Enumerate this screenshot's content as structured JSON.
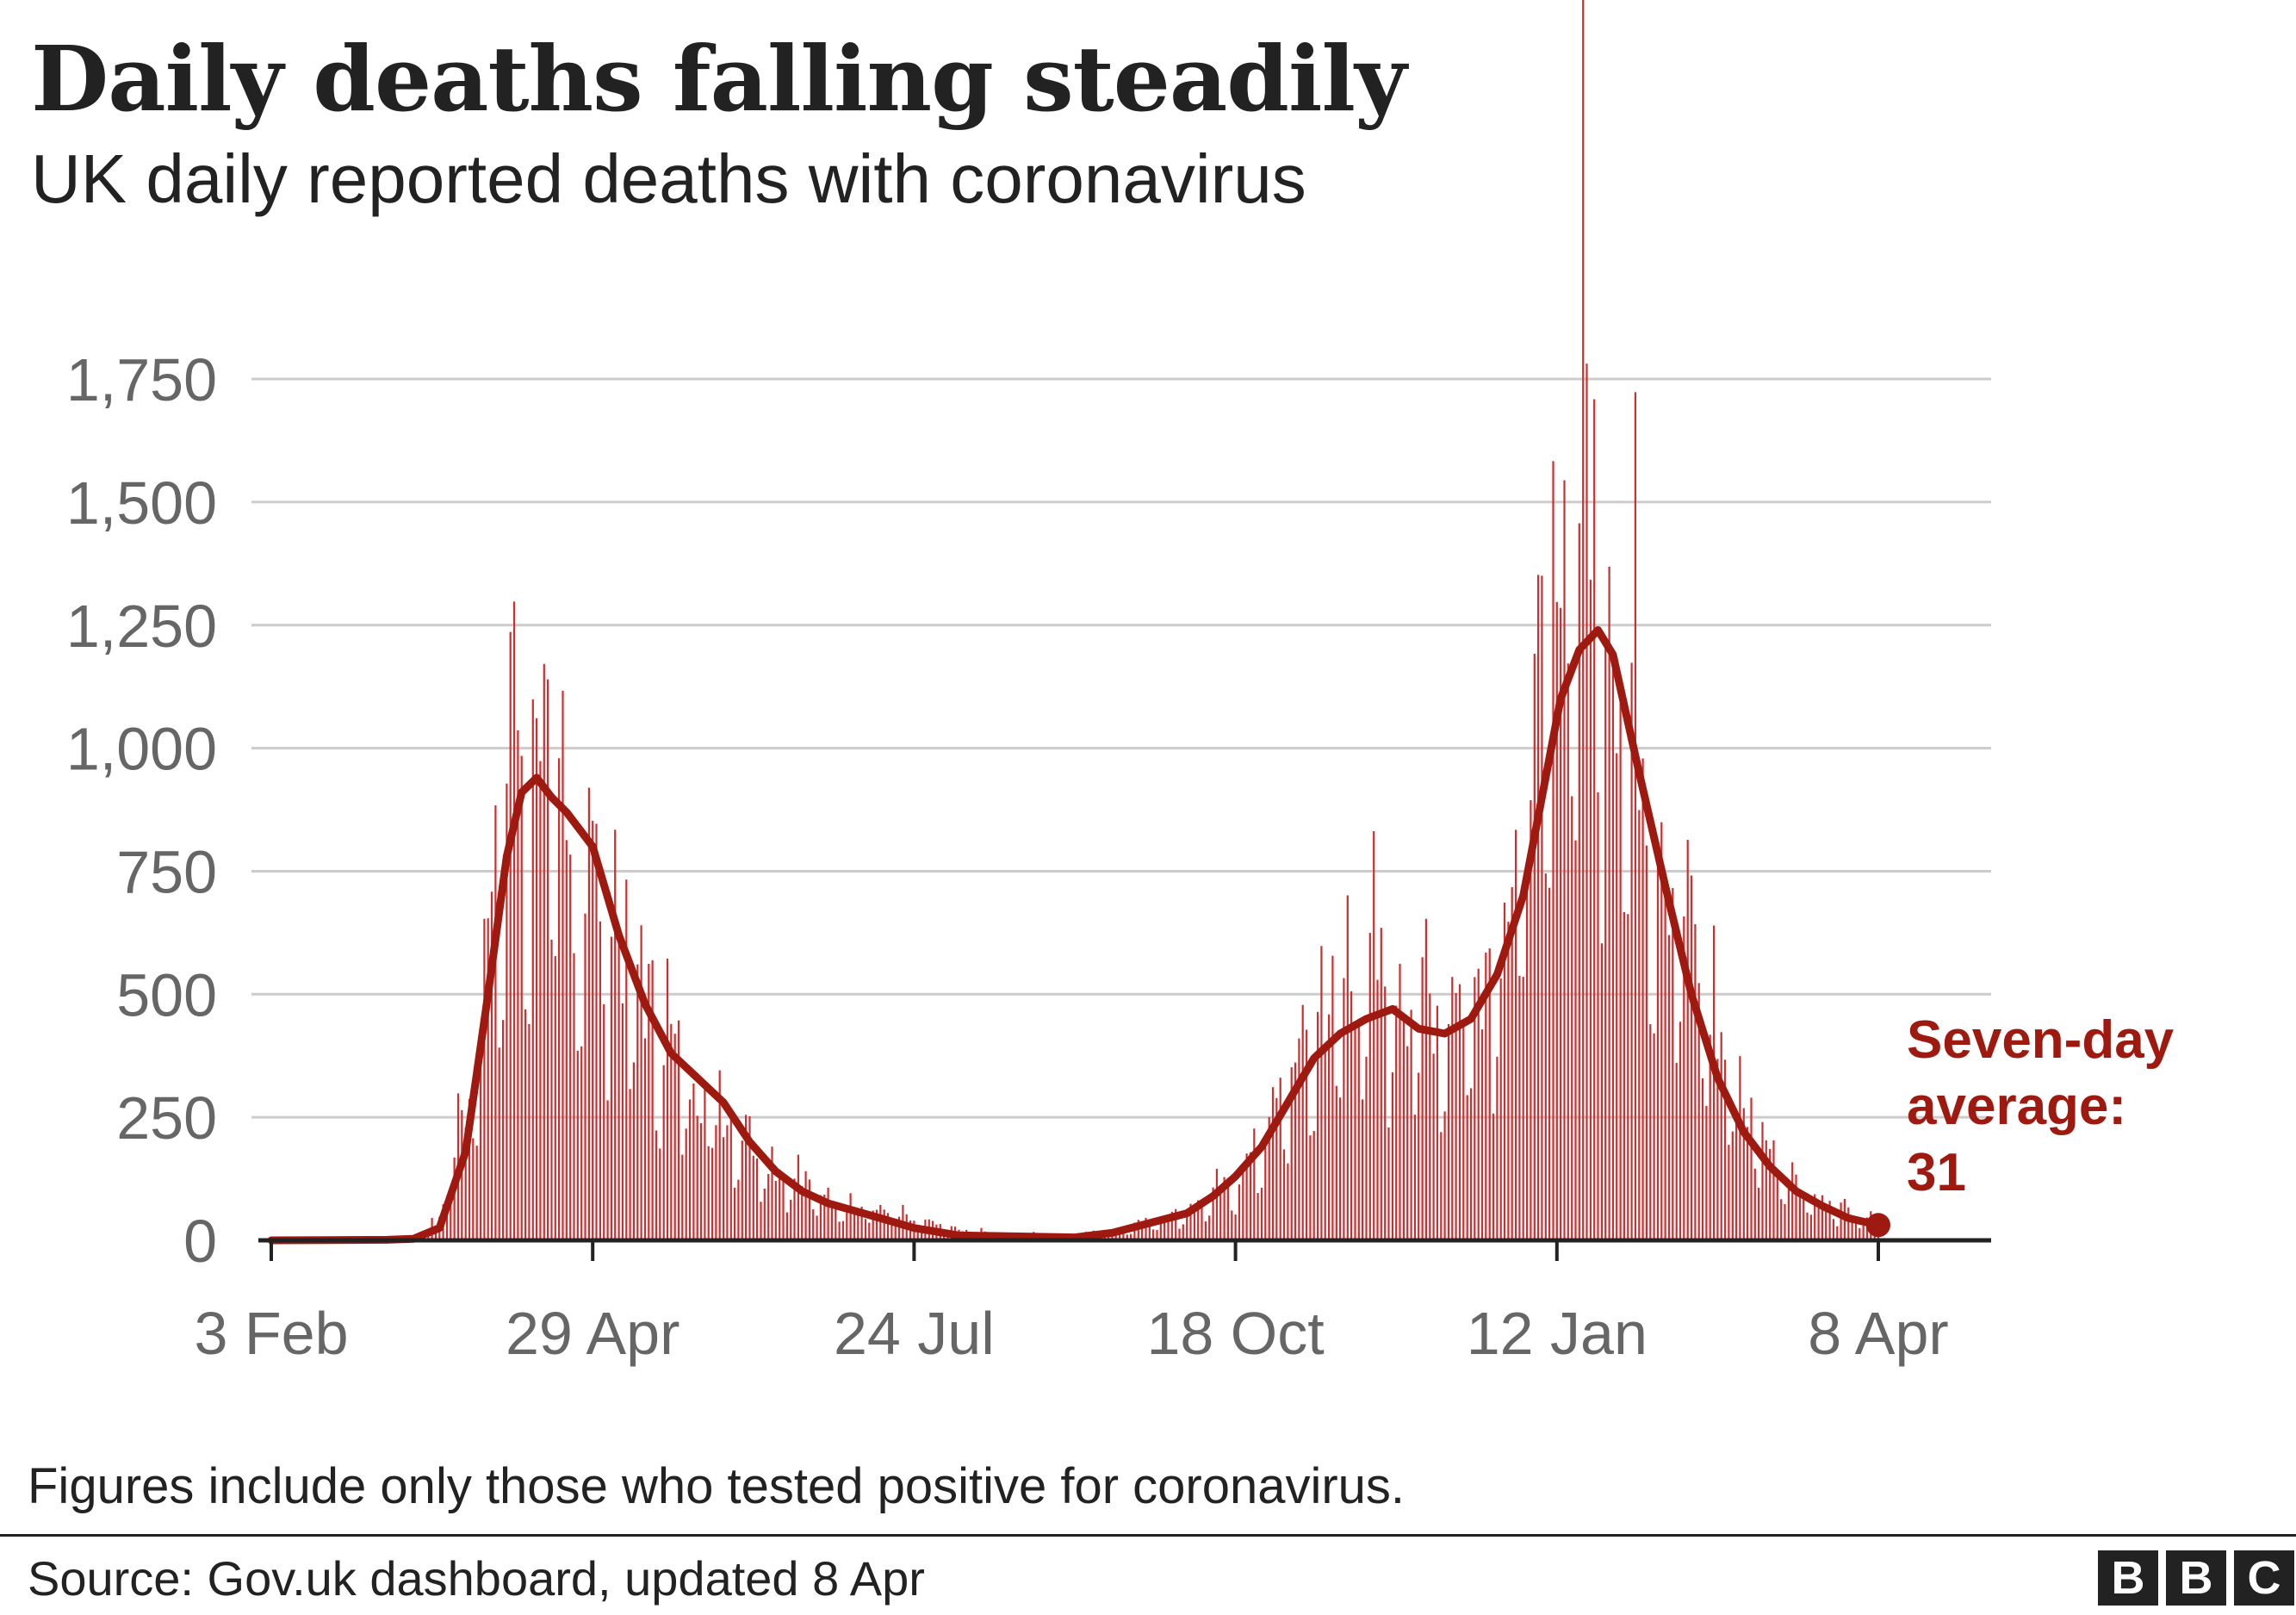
{
  "header": {
    "title": "Daily deaths falling steadily",
    "subtitle": "UK daily reported deaths with coronavirus"
  },
  "footer": {
    "note": "Figures include only those who tested positive for coronavirus.",
    "source": "Source: Gov.uk dashboard, updated 8 Apr",
    "logo": [
      "B",
      "B",
      "C"
    ]
  },
  "colors": {
    "bars": "#d02e2e",
    "average_line": "#9e1a10",
    "annotation": "#9e1a10",
    "grid": "#cccccc",
    "axis": "#222222",
    "tick_text": "#666666"
  },
  "chart_data": {
    "type": "bar",
    "title": "Daily deaths falling steadily",
    "subtitle": "UK daily reported deaths with coronavirus",
    "xlabel": "",
    "ylabel": "",
    "x_start": "2020-02-03",
    "x_end": "2021-04-08",
    "xlim": [
      "2020-02-03",
      "2021-04-08"
    ],
    "ylim": [
      0,
      1800
    ],
    "grid": true,
    "y_ticks": [
      {
        "value": 0,
        "label": "0"
      },
      {
        "value": 250,
        "label": "250"
      },
      {
        "value": 500,
        "label": "500"
      },
      {
        "value": 750,
        "label": "750"
      },
      {
        "value": 1000,
        "label": "1,000"
      },
      {
        "value": 1250,
        "label": "1,250"
      },
      {
        "value": 1500,
        "label": "1,500"
      },
      {
        "value": 1750,
        "label": "1,750"
      }
    ],
    "x_ticks": [
      {
        "date": "2020-02-03",
        "label": "3 Feb"
      },
      {
        "date": "2020-04-29",
        "label": "29 Apr"
      },
      {
        "date": "2020-07-24",
        "label": "24 Jul"
      },
      {
        "date": "2020-10-18",
        "label": "18 Oct"
      },
      {
        "date": "2021-01-12",
        "label": "12 Jan"
      },
      {
        "date": "2021-04-08",
        "label": "8 Apr"
      }
    ],
    "series": [
      {
        "type": "bar",
        "note": "daily reported deaths, keypoints (date, value) read from chart; bars drawn daily between keypoints",
        "points": [
          [
            "2020-02-03",
            0
          ],
          [
            "2020-03-05",
            0
          ],
          [
            "2020-03-12",
            5
          ],
          [
            "2020-03-19",
            40
          ],
          [
            "2020-03-26",
            280
          ],
          [
            "2020-04-01",
            600
          ],
          [
            "2020-04-05",
            840
          ],
          [
            "2020-04-08",
            1110
          ],
          [
            "2020-04-12",
            920
          ],
          [
            "2020-04-15",
            1100
          ],
          [
            "2020-04-18",
            900
          ],
          [
            "2020-04-22",
            760
          ],
          [
            "2020-04-29",
            780
          ],
          [
            "2020-05-05",
            640
          ],
          [
            "2020-05-12",
            520
          ],
          [
            "2020-05-20",
            400
          ],
          [
            "2020-05-27",
            320
          ],
          [
            "2020-06-03",
            270
          ],
          [
            "2020-06-10",
            220
          ],
          [
            "2020-06-17",
            150
          ],
          [
            "2020-06-24",
            120
          ],
          [
            "2020-07-01",
            90
          ],
          [
            "2020-07-08",
            70
          ],
          [
            "2020-07-15",
            60
          ],
          [
            "2020-07-24",
            40
          ],
          [
            "2020-08-05",
            20
          ],
          [
            "2020-08-20",
            12
          ],
          [
            "2020-09-01",
            10
          ],
          [
            "2020-09-15",
            20
          ],
          [
            "2020-09-25",
            40
          ],
          [
            "2020-10-05",
            60
          ],
          [
            "2020-10-12",
            90
          ],
          [
            "2020-10-18",
            120
          ],
          [
            "2020-10-25",
            210
          ],
          [
            "2020-11-01",
            320
          ],
          [
            "2020-11-08",
            440
          ],
          [
            "2020-11-15",
            520
          ],
          [
            "2020-11-22",
            560
          ],
          [
            "2020-11-29",
            520
          ],
          [
            "2020-12-06",
            500
          ],
          [
            "2020-12-13",
            480
          ],
          [
            "2020-12-20",
            520
          ],
          [
            "2020-12-27",
            640
          ],
          [
            "2021-01-03",
            820
          ],
          [
            "2021-01-08",
            1150
          ],
          [
            "2021-01-13",
            1420
          ],
          [
            "2021-01-20",
            1700
          ],
          [
            "2021-01-23",
            1500
          ],
          [
            "2021-01-27",
            1300
          ],
          [
            "2021-02-03",
            1100
          ],
          [
            "2021-02-10",
            800
          ],
          [
            "2021-02-17",
            620
          ],
          [
            "2021-02-24",
            420
          ],
          [
            "2021-03-03",
            280
          ],
          [
            "2021-03-10",
            190
          ],
          [
            "2021-03-17",
            120
          ],
          [
            "2021-03-24",
            80
          ],
          [
            "2021-03-31",
            55
          ],
          [
            "2021-04-08",
            35
          ]
        ]
      },
      {
        "type": "line",
        "note": "seven-day average",
        "points": [
          [
            "2020-02-03",
            0
          ],
          [
            "2020-03-05",
            1
          ],
          [
            "2020-03-12",
            3
          ],
          [
            "2020-03-19",
            25
          ],
          [
            "2020-03-26",
            180
          ],
          [
            "2020-04-01",
            500
          ],
          [
            "2020-04-06",
            780
          ],
          [
            "2020-04-10",
            910
          ],
          [
            "2020-04-14",
            940
          ],
          [
            "2020-04-18",
            900
          ],
          [
            "2020-04-22",
            870
          ],
          [
            "2020-04-29",
            800
          ],
          [
            "2020-05-06",
            620
          ],
          [
            "2020-05-13",
            480
          ],
          [
            "2020-05-20",
            380
          ],
          [
            "2020-05-27",
            330
          ],
          [
            "2020-06-03",
            280
          ],
          [
            "2020-06-10",
            200
          ],
          [
            "2020-06-17",
            140
          ],
          [
            "2020-06-24",
            100
          ],
          [
            "2020-07-01",
            75
          ],
          [
            "2020-07-08",
            60
          ],
          [
            "2020-07-15",
            45
          ],
          [
            "2020-07-24",
            25
          ],
          [
            "2020-08-05",
            10
          ],
          [
            "2020-08-20",
            8
          ],
          [
            "2020-09-05",
            6
          ],
          [
            "2020-09-15",
            15
          ],
          [
            "2020-09-25",
            35
          ],
          [
            "2020-10-05",
            55
          ],
          [
            "2020-10-12",
            90
          ],
          [
            "2020-10-18",
            130
          ],
          [
            "2020-10-25",
            190
          ],
          [
            "2020-11-01",
            280
          ],
          [
            "2020-11-08",
            370
          ],
          [
            "2020-11-15",
            420
          ],
          [
            "2020-11-22",
            450
          ],
          [
            "2020-11-29",
            470
          ],
          [
            "2020-12-06",
            430
          ],
          [
            "2020-12-13",
            420
          ],
          [
            "2020-12-20",
            450
          ],
          [
            "2020-12-27",
            540
          ],
          [
            "2021-01-03",
            700
          ],
          [
            "2021-01-08",
            900
          ],
          [
            "2021-01-13",
            1100
          ],
          [
            "2021-01-18",
            1200
          ],
          [
            "2021-01-23",
            1240
          ],
          [
            "2021-01-27",
            1190
          ],
          [
            "2021-02-03",
            950
          ],
          [
            "2021-02-10",
            720
          ],
          [
            "2021-02-17",
            500
          ],
          [
            "2021-02-24",
            330
          ],
          [
            "2021-03-03",
            220
          ],
          [
            "2021-03-10",
            150
          ],
          [
            "2021-03-17",
            100
          ],
          [
            "2021-03-24",
            70
          ],
          [
            "2021-03-31",
            45
          ],
          [
            "2021-04-08",
            31
          ]
        ]
      }
    ],
    "annotations": [
      {
        "text_lines": [
          "Seven-day",
          "average:",
          "31"
        ],
        "date": "2021-04-08",
        "value": 31
      }
    ]
  }
}
